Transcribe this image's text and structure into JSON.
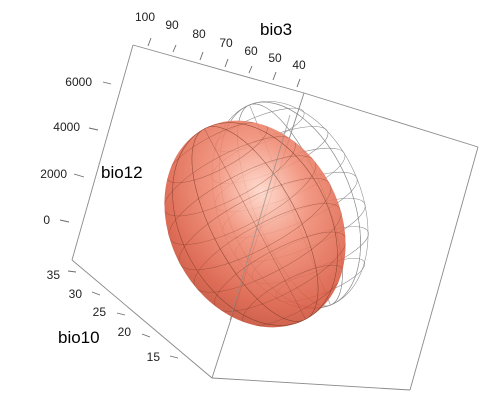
{
  "chart_data": {
    "type": "3d-ellipsoid",
    "axes": {
      "x": {
        "label": "bio3",
        "ticks": [
          100,
          90,
          80,
          70,
          60,
          50,
          40
        ]
      },
      "y": {
        "label": "bio12",
        "ticks": [
          6000,
          4000,
          2000,
          0
        ]
      },
      "z": {
        "label": "bio10",
        "ticks": [
          35,
          30,
          25,
          20,
          15
        ]
      }
    },
    "shapes": [
      {
        "style": "solid",
        "color": "#e0634a"
      },
      {
        "style": "wireframe",
        "color": "#8c8c8c"
      }
    ],
    "bounding_box": true,
    "grid": false
  }
}
